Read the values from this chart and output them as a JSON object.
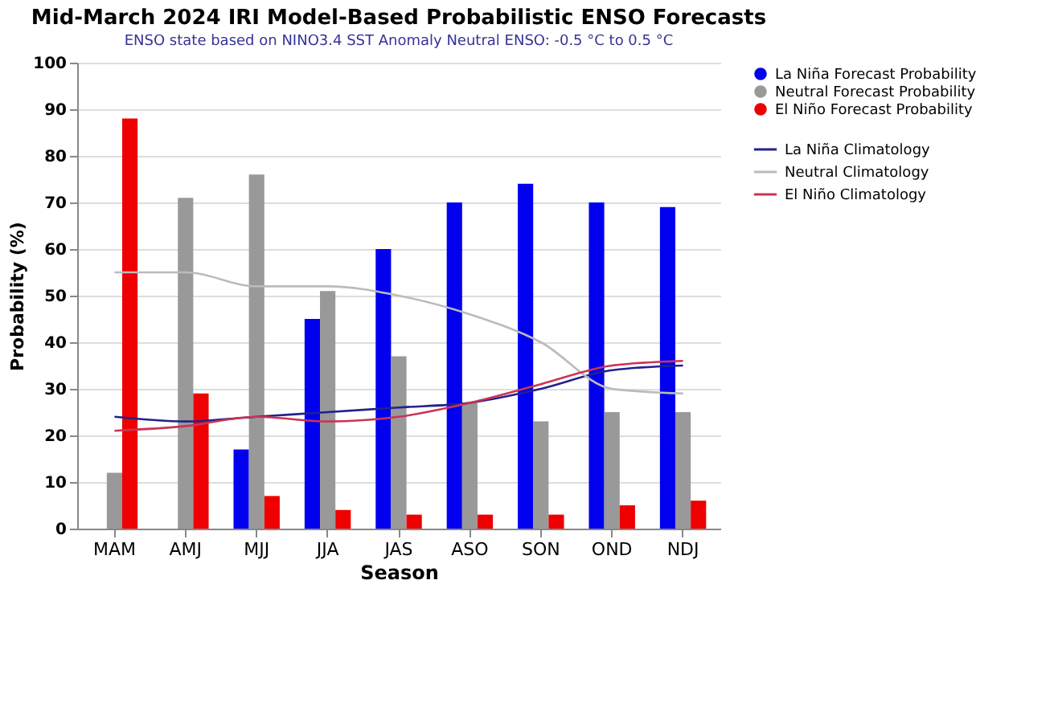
{
  "chart_data": {
    "type": "bar",
    "title": "Mid-March 2024 IRI Model-Based Probabilistic ENSO Forecasts",
    "subtitle": "ENSO state based on NINO3.4 SST Anomaly Neutral ENSO: -0.5 °C to 0.5 °C",
    "xlabel": "Season",
    "ylabel": "Probability (%)",
    "categories": [
      "MAM",
      "AMJ",
      "MJJ",
      "JJA",
      "JAS",
      "ASO",
      "SON",
      "OND",
      "NDJ"
    ],
    "series": [
      {
        "name": "La Niña Forecast Probability",
        "color": "#0000ee",
        "values": [
          0,
          0,
          17,
          45,
          60,
          70,
          74,
          70,
          69
        ]
      },
      {
        "name": "Neutral Forecast Probability",
        "color": "#999999",
        "values": [
          12,
          71,
          76,
          51,
          37,
          27,
          23,
          25,
          25
        ]
      },
      {
        "name": "El Niño Forecast Probability",
        "color": "#ee0000",
        "values": [
          88,
          29,
          7,
          4,
          3,
          3,
          3,
          5,
          6
        ]
      },
      {
        "name": "La Niña Climatology",
        "type": "line",
        "color": "#22228c",
        "values": [
          24,
          23,
          24,
          25,
          26,
          27,
          30,
          34,
          35
        ]
      },
      {
        "name": "Neutral Climatology",
        "type": "line",
        "color": "#bbbbbb",
        "values": [
          55,
          55,
          52,
          52,
          50,
          46,
          40,
          30,
          29
        ]
      },
      {
        "name": "El Niño Climatology",
        "type": "line",
        "color": "#cc3355",
        "values": [
          21,
          22,
          24,
          23,
          24,
          27,
          31,
          35,
          36
        ]
      }
    ],
    "ylim": [
      0,
      100
    ],
    "yticks": [
      0,
      10,
      20,
      30,
      40,
      50,
      60,
      70,
      80,
      90,
      100
    ],
    "grid": "y",
    "legend": "right",
    "marker": "none",
    "line_style": "solid"
  }
}
